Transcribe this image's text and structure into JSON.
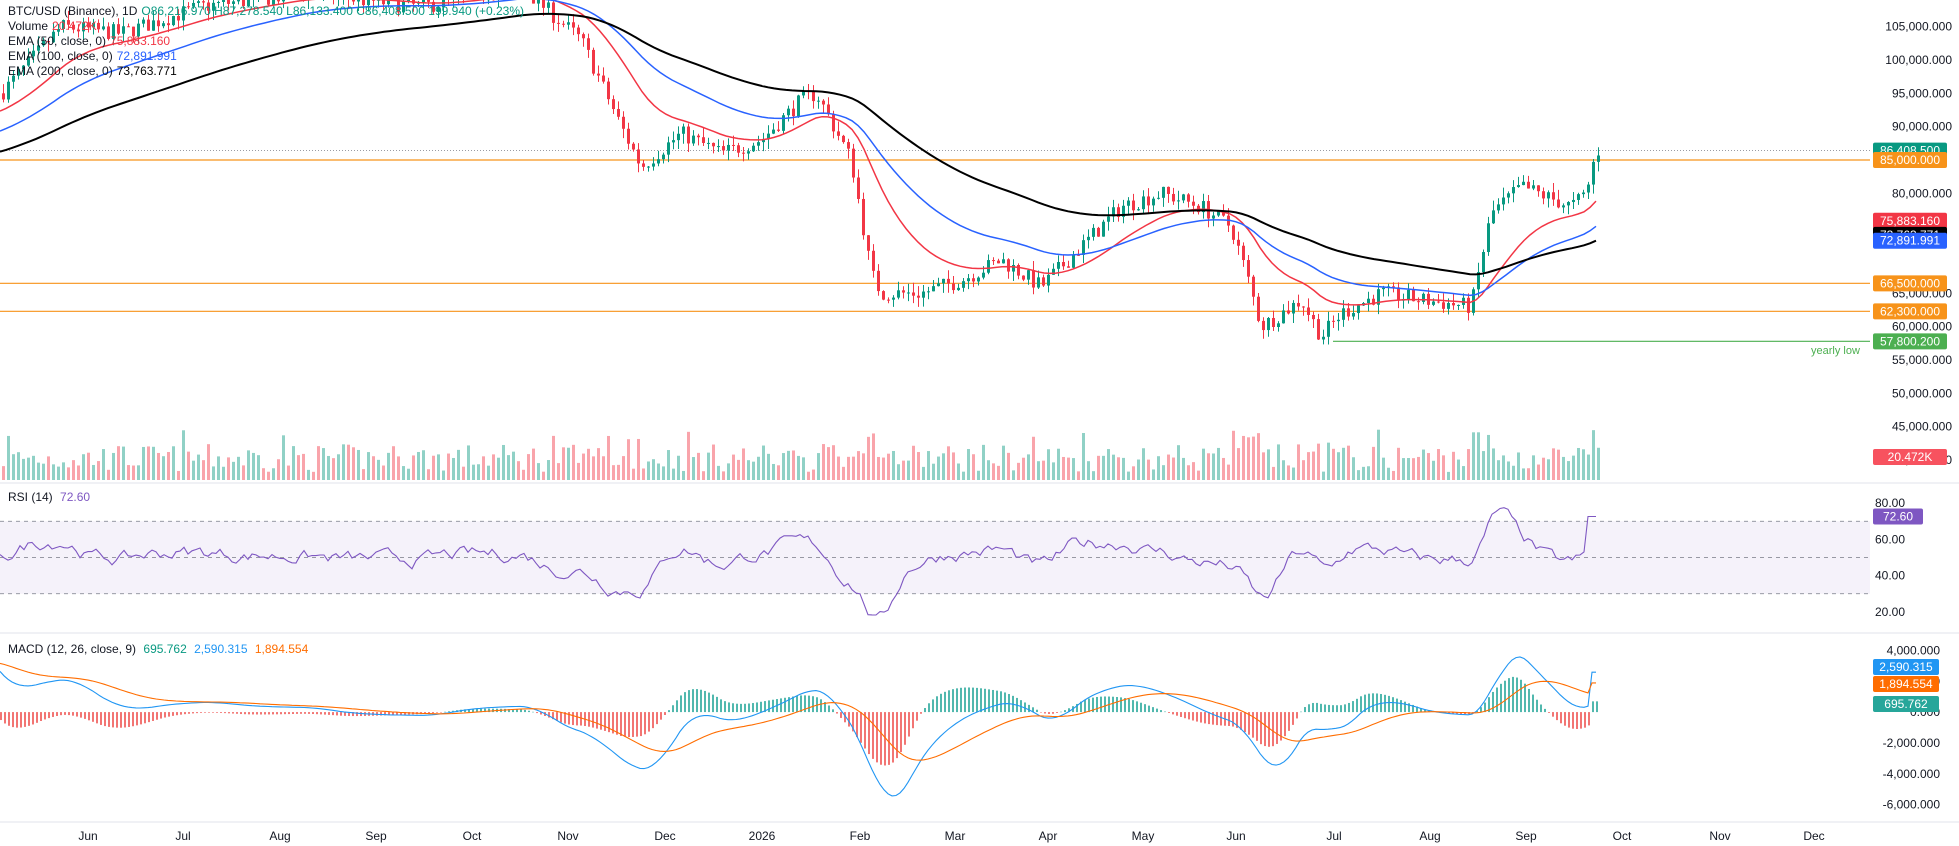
{
  "header": {
    "symbol": "BTC/USD (Binance), 1D",
    "ohlc": "O86,216.970 H87,278.540 L86,133.400 C86,408.500 199.940 (+0.23%)",
    "volume_label": "Volume",
    "volume_value": "20.472K",
    "ema50_label": "EMA (50, close, 0)",
    "ema50_value": "75,883.160",
    "ema100_label": "EMA (100, close, 0)",
    "ema100_value": "72,891.991",
    "ema200_label": "EMA (200, close, 0)",
    "ema200_value": "73,763.771"
  },
  "price_axis": {
    "ticks": [
      "105,000.000",
      "100,000.000",
      "95,000.000",
      "90,000.000",
      "80,000.000",
      "65,000.000",
      "60,000.000",
      "55,000.000",
      "50,000.000",
      "45,000.000",
      "40,000.000"
    ],
    "tick_values": [
      105000,
      100000,
      95000,
      90000,
      80000,
      65000,
      60000,
      55000,
      50000,
      45000,
      40000
    ]
  },
  "price_tags": [
    {
      "name": "current-price",
      "text": "86,408.500",
      "color": "#089981",
      "value": 86408.5
    },
    {
      "name": "level-85000",
      "text": "85,000.000",
      "color": "#f7931a",
      "value": 85000
    },
    {
      "name": "ema50",
      "text": "75,883.160",
      "color": "#f23645",
      "value": 75883.16
    },
    {
      "name": "ema200",
      "text": "73,763.771",
      "color": "#000000",
      "value": 73763.771
    },
    {
      "name": "ema100",
      "text": "72,891.991",
      "color": "#2962ff",
      "value": 72891.991
    },
    {
      "name": "level-66500",
      "text": "66,500.000",
      "color": "#f7931a",
      "value": 66500
    },
    {
      "name": "level-62300",
      "text": "62,300.000",
      "color": "#f7931a",
      "value": 62300
    },
    {
      "name": "yearly-low",
      "text": "57,800.200",
      "color": "#4caf50",
      "value": 57800.2
    }
  ],
  "annotation": {
    "yearly_low_text": "yearly low"
  },
  "volume_tag": {
    "text": "20.472K",
    "color": "#f7525f"
  },
  "rsi": {
    "title": "RSI (14)",
    "value": "72.60",
    "ticks": [
      "80.00",
      "60.00",
      "40.00",
      "20.00"
    ],
    "tick_values": [
      80,
      60,
      40,
      20
    ],
    "bands": [
      70,
      50,
      30
    ]
  },
  "macd": {
    "title": "MACD (12, 26, close, 9)",
    "hist_value": "695.762",
    "macd_value": "2,590.315",
    "signal_value": "1,894.554",
    "ticks": [
      "4,000.000",
      "2,000.000",
      "0.000",
      "-2,000.000",
      "-4,000.000",
      "-6,000.000"
    ],
    "tick_values": [
      4000,
      2000,
      0,
      -2000,
      -4000,
      -6000
    ]
  },
  "time_axis": {
    "labels": [
      "Jun",
      "Jul",
      "Aug",
      "Sep",
      "Oct",
      "Nov",
      "Dec",
      "2026",
      "Feb",
      "Mar",
      "Apr",
      "May",
      "Jun",
      "Jul",
      "Aug",
      "Sep",
      "Oct",
      "Nov",
      "Dec"
    ]
  },
  "colors": {
    "bull": "#089981",
    "bear": "#f23645",
    "ema50": "#f23645",
    "ema100": "#2962ff",
    "ema200": "#000000",
    "level": "#f7931a",
    "rsi": "#7e57c2",
    "macd": "#2196f3",
    "signal": "#ff6d00"
  },
  "chart_data": {
    "type": "line",
    "title": "BTC/USD (Binance), 1D",
    "x": [
      "Jun",
      "Jul",
      "Aug",
      "Sep",
      "Oct",
      "Nov",
      "Dec",
      "2026",
      "Feb",
      "Mar",
      "Apr",
      "May",
      "Jun",
      "Jul",
      "Aug",
      "Sep"
    ],
    "series": [
      {
        "name": "EMA (50, close, 0)",
        "values": [
          97000,
          101000,
          104000,
          107000,
          107500,
          103000,
          92000,
          90000,
          83000,
          74000,
          78000,
          81000,
          69000,
          64000,
          63500,
          75883
        ]
      },
      {
        "name": "EMA (100, close, 0)",
        "values": [
          92000,
          97000,
          101000,
          104500,
          106000,
          104000,
          98000,
          93000,
          88000,
          80000,
          77000,
          78000,
          72000,
          68000,
          66000,
          72892
        ]
      },
      {
        "name": "EMA (200, close, 0)",
        "values": [
          86000,
          90000,
          94000,
          98000,
          102000,
          104000,
          100000,
          97000,
          94000,
          88000,
          84000,
          81000,
          78000,
          74000,
          71000,
          73764
        ]
      }
    ],
    "levels": [
      85000,
      66500,
      62300,
      57800.2
    ],
    "ylim": [
      40000,
      108000
    ]
  }
}
